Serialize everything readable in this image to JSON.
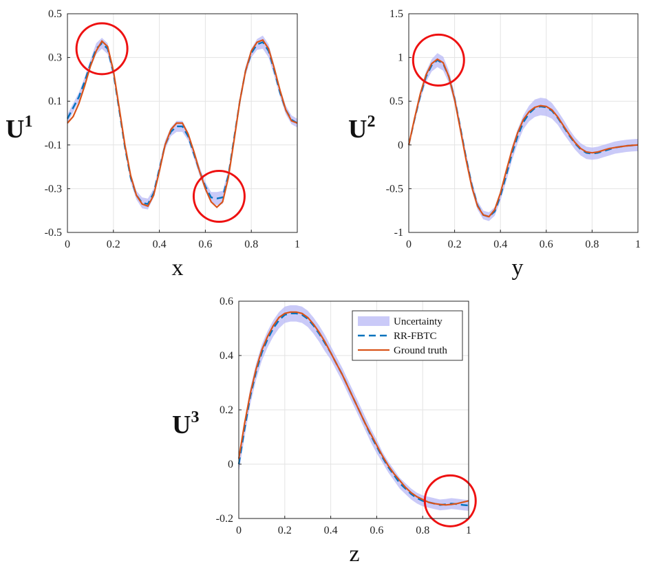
{
  "chart_data": [
    {
      "type": "line",
      "xlabel": "x",
      "ylabel": "U",
      "ylabel_sup": "1",
      "xlim": [
        0,
        1
      ],
      "ylim": [
        -0.5,
        0.5
      ],
      "xticks": [
        "0",
        "0.2",
        "0.4",
        "0.6",
        "0.8",
        "1"
      ],
      "yticks": [
        "-0.5",
        "-0.3",
        "-0.1",
        "0.1",
        "0.3",
        "0.5"
      ],
      "grid": true,
      "x": [
        0,
        0.025,
        0.05,
        0.075,
        0.1,
        0.125,
        0.15,
        0.175,
        0.2,
        0.225,
        0.25,
        0.275,
        0.3,
        0.325,
        0.35,
        0.375,
        0.4,
        0.425,
        0.45,
        0.475,
        0.5,
        0.525,
        0.55,
        0.575,
        0.6,
        0.625,
        0.65,
        0.675,
        0.7,
        0.725,
        0.75,
        0.775,
        0.8,
        0.825,
        0.85,
        0.875,
        0.9,
        0.925,
        0.95,
        0.975,
        1
      ],
      "series": [
        {
          "name": "Ground truth",
          "role": "truth",
          "color": "#d95319",
          "values": [
            0.0,
            0.03,
            0.09,
            0.17,
            0.26,
            0.33,
            0.375,
            0.35,
            0.24,
            0.07,
            -0.1,
            -0.24,
            -0.33,
            -0.37,
            -0.38,
            -0.33,
            -0.22,
            -0.1,
            -0.03,
            0.0,
            0.0,
            -0.05,
            -0.13,
            -0.22,
            -0.3,
            -0.36,
            -0.385,
            -0.36,
            -0.25,
            -0.08,
            0.1,
            0.24,
            0.33,
            0.37,
            0.38,
            0.34,
            0.25,
            0.15,
            0.06,
            0.01,
            0.0
          ]
        },
        {
          "name": "RR-FBTC",
          "role": "prediction",
          "color": "#0072bd",
          "values": [
            0.02,
            0.07,
            0.12,
            0.19,
            0.27,
            0.34,
            0.365,
            0.34,
            0.23,
            0.06,
            -0.11,
            -0.25,
            -0.33,
            -0.365,
            -0.37,
            -0.32,
            -0.21,
            -0.1,
            -0.04,
            -0.015,
            -0.015,
            -0.06,
            -0.14,
            -0.22,
            -0.29,
            -0.34,
            -0.345,
            -0.34,
            -0.24,
            -0.07,
            0.1,
            0.24,
            0.32,
            0.36,
            0.37,
            0.33,
            0.24,
            0.14,
            0.06,
            0.015,
            0.0
          ]
        },
        {
          "name": "Uncertainty",
          "role": "band_halfwidth",
          "color": "#b8b8f5",
          "values": [
            0.02,
            0.02,
            0.02,
            0.02,
            0.02,
            0.025,
            0.025,
            0.025,
            0.02,
            0.02,
            0.02,
            0.02,
            0.02,
            0.025,
            0.025,
            0.02,
            0.02,
            0.02,
            0.02,
            0.025,
            0.025,
            0.02,
            0.02,
            0.02,
            0.02,
            0.025,
            0.03,
            0.03,
            0.02,
            0.02,
            0.02,
            0.02,
            0.02,
            0.025,
            0.03,
            0.03,
            0.025,
            0.02,
            0.02,
            0.02,
            0.02
          ]
        }
      ],
      "highlights": [
        {
          "x": 0.15,
          "y": 0.34
        },
        {
          "x": 0.66,
          "y": -0.335
        }
      ]
    },
    {
      "type": "line",
      "xlabel": "y",
      "ylabel": "U",
      "ylabel_sup": "2",
      "xlim": [
        0,
        1
      ],
      "ylim": [
        -1,
        1.5
      ],
      "xticks": [
        "0",
        "0.2",
        "0.4",
        "0.6",
        "0.8",
        "1"
      ],
      "yticks": [
        "-1",
        "-0.5",
        "0",
        "0.5",
        "1",
        "1.5"
      ],
      "grid": true,
      "x": [
        0,
        0.025,
        0.05,
        0.075,
        0.1,
        0.125,
        0.15,
        0.175,
        0.2,
        0.225,
        0.25,
        0.275,
        0.3,
        0.325,
        0.35,
        0.375,
        0.4,
        0.425,
        0.45,
        0.475,
        0.5,
        0.525,
        0.55,
        0.575,
        0.6,
        0.625,
        0.65,
        0.675,
        0.7,
        0.725,
        0.75,
        0.775,
        0.8,
        0.825,
        0.85,
        0.875,
        0.9,
        0.925,
        0.95,
        0.975,
        1
      ],
      "series": [
        {
          "name": "Ground truth",
          "role": "truth",
          "color": "#d95319",
          "values": [
            0.0,
            0.3,
            0.58,
            0.8,
            0.93,
            0.98,
            0.94,
            0.78,
            0.52,
            0.18,
            -0.17,
            -0.48,
            -0.7,
            -0.8,
            -0.82,
            -0.74,
            -0.55,
            -0.3,
            -0.06,
            0.14,
            0.29,
            0.38,
            0.43,
            0.45,
            0.44,
            0.4,
            0.32,
            0.22,
            0.12,
            0.03,
            -0.04,
            -0.08,
            -0.09,
            -0.08,
            -0.06,
            -0.04,
            -0.03,
            -0.02,
            -0.01,
            -0.005,
            0.0
          ]
        },
        {
          "name": "RR-FBTC",
          "role": "prediction",
          "color": "#0072bd",
          "values": [
            0.0,
            0.29,
            0.56,
            0.78,
            0.91,
            0.97,
            0.93,
            0.78,
            0.53,
            0.2,
            -0.15,
            -0.46,
            -0.69,
            -0.8,
            -0.82,
            -0.76,
            -0.58,
            -0.35,
            -0.1,
            0.1,
            0.26,
            0.36,
            0.42,
            0.44,
            0.43,
            0.39,
            0.31,
            0.21,
            0.11,
            0.02,
            -0.05,
            -0.09,
            -0.1,
            -0.09,
            -0.07,
            -0.05,
            -0.03,
            -0.02,
            -0.01,
            -0.005,
            0.0
          ]
        },
        {
          "name": "Uncertainty",
          "role": "band_halfwidth",
          "color": "#b8b8f5",
          "values": [
            0.02,
            0.04,
            0.05,
            0.06,
            0.07,
            0.08,
            0.08,
            0.07,
            0.06,
            0.06,
            0.06,
            0.06,
            0.05,
            0.05,
            0.05,
            0.05,
            0.06,
            0.07,
            0.08,
            0.08,
            0.08,
            0.09,
            0.1,
            0.1,
            0.1,
            0.09,
            0.08,
            0.08,
            0.07,
            0.07,
            0.07,
            0.07,
            0.07,
            0.07,
            0.07,
            0.07,
            0.07,
            0.07,
            0.07,
            0.07,
            0.07
          ]
        }
      ],
      "highlights": [
        {
          "x": 0.13,
          "y": 0.97
        }
      ]
    },
    {
      "type": "line",
      "xlabel": "z",
      "ylabel": "U",
      "ylabel_sup": "3",
      "xlim": [
        0,
        1
      ],
      "ylim": [
        -0.2,
        0.6
      ],
      "xticks": [
        "0",
        "0.2",
        "0.4",
        "0.6",
        "0.8",
        "1"
      ],
      "yticks": [
        "-0.2",
        "0",
        "0.2",
        "0.4",
        "0.6"
      ],
      "grid": true,
      "legend_position": "top-right",
      "x": [
        0,
        0.025,
        0.05,
        0.075,
        0.1,
        0.125,
        0.15,
        0.175,
        0.2,
        0.225,
        0.25,
        0.275,
        0.3,
        0.325,
        0.35,
        0.375,
        0.4,
        0.425,
        0.45,
        0.475,
        0.5,
        0.525,
        0.55,
        0.575,
        0.6,
        0.625,
        0.65,
        0.675,
        0.7,
        0.725,
        0.75,
        0.775,
        0.8,
        0.825,
        0.85,
        0.875,
        0.9,
        0.925,
        0.95,
        0.975,
        1
      ],
      "series": [
        {
          "name": "Uncertainty",
          "role": "band_halfwidth",
          "color": "#b8b8f5",
          "values": [
            0.03,
            0.03,
            0.03,
            0.03,
            0.03,
            0.03,
            0.03,
            0.03,
            0.03,
            0.03,
            0.03,
            0.03,
            0.03,
            0.03,
            0.03,
            0.03,
            0.025,
            0.025,
            0.025,
            0.025,
            0.025,
            0.025,
            0.025,
            0.025,
            0.025,
            0.02,
            0.02,
            0.02,
            0.02,
            0.02,
            0.02,
            0.02,
            0.02,
            0.02,
            0.02,
            0.02,
            0.02,
            0.02,
            0.02,
            0.02,
            0.02
          ]
        },
        {
          "name": "RR-FBTC",
          "role": "prediction",
          "color": "#0072bd",
          "values": [
            0.0,
            0.13,
            0.25,
            0.34,
            0.41,
            0.46,
            0.5,
            0.53,
            0.55,
            0.555,
            0.555,
            0.55,
            0.535,
            0.51,
            0.48,
            0.445,
            0.41,
            0.37,
            0.33,
            0.285,
            0.24,
            0.195,
            0.15,
            0.105,
            0.065,
            0.025,
            -0.01,
            -0.04,
            -0.07,
            -0.09,
            -0.11,
            -0.125,
            -0.135,
            -0.14,
            -0.145,
            -0.15,
            -0.148,
            -0.145,
            -0.147,
            -0.15,
            -0.152
          ]
        },
        {
          "name": "Ground truth",
          "role": "truth",
          "color": "#d95319",
          "values": [
            0.02,
            0.15,
            0.26,
            0.35,
            0.42,
            0.47,
            0.51,
            0.54,
            0.555,
            0.56,
            0.56,
            0.555,
            0.54,
            0.515,
            0.485,
            0.45,
            0.41,
            0.37,
            0.33,
            0.285,
            0.24,
            0.195,
            0.15,
            0.11,
            0.07,
            0.03,
            -0.005,
            -0.035,
            -0.06,
            -0.085,
            -0.105,
            -0.12,
            -0.13,
            -0.14,
            -0.145,
            -0.148,
            -0.15,
            -0.148,
            -0.145,
            -0.14,
            -0.135
          ]
        }
      ],
      "highlights": [
        {
          "x": 0.92,
          "y": -0.135
        }
      ]
    }
  ]
}
